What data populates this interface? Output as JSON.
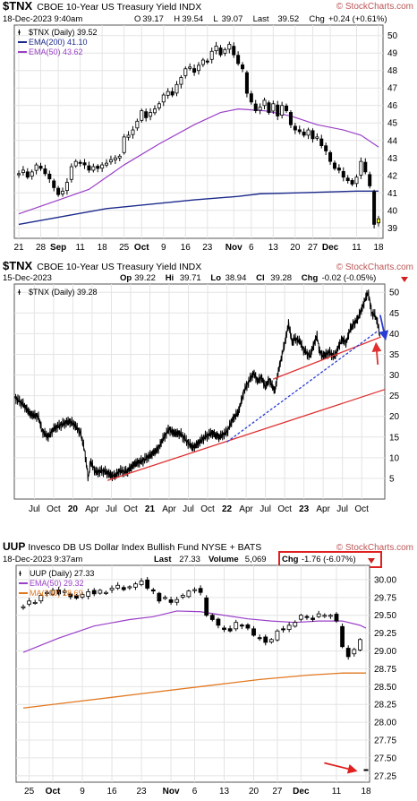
{
  "watermark": "© StockCharts.com",
  "chart_data": [
    {
      "type": "candlestick",
      "symbol": "$TNX",
      "title": "CBOE 10-Year US Treasury Yield",
      "exchange": "INDX",
      "date_line": "18-Dec-2023 9:40am",
      "header_values": [
        {
          "label": "O",
          "value": "39.17"
        },
        {
          "label": "H",
          "value": "39.54"
        },
        {
          "label": "L",
          "value": "39.07"
        },
        {
          "label": "Last",
          "value": "39.52"
        },
        {
          "label": "Chg",
          "value": "+0.24 (+0.61%)"
        }
      ],
      "legend": [
        {
          "name": "$TNX (Daily) 39.52",
          "color": "#000000"
        },
        {
          "name": "EMA(200) 41.10",
          "color": "#1c2a8c"
        },
        {
          "name": "EMA(50) 43.62",
          "color": "#9a3fc8"
        }
      ],
      "ylim": [
        38.4,
        50.6
      ],
      "y_ticks": [
        39,
        40,
        41,
        42,
        43,
        44,
        45,
        46,
        47,
        48,
        49,
        50
      ],
      "x_ticks": [
        {
          "label": "21",
          "index": 0,
          "bold": false
        },
        {
          "label": "28",
          "index": 5,
          "bold": false
        },
        {
          "label": "Sep",
          "index": 9,
          "bold": true
        },
        {
          "label": "11",
          "index": 14,
          "bold": false
        },
        {
          "label": "18",
          "index": 19,
          "bold": false
        },
        {
          "label": "25",
          "index": 24,
          "bold": false
        },
        {
          "label": "Oct",
          "index": 28,
          "bold": true
        },
        {
          "label": "9",
          "index": 33,
          "bold": false
        },
        {
          "label": "16",
          "index": 38,
          "bold": false
        },
        {
          "label": "23",
          "index": 43,
          "bold": false
        },
        {
          "label": "Nov",
          "index": 49,
          "bold": true
        },
        {
          "label": "6",
          "index": 53,
          "bold": false
        },
        {
          "label": "13",
          "index": 58,
          "bold": false
        },
        {
          "label": "20",
          "index": 63,
          "bold": false
        },
        {
          "label": "27",
          "index": 67,
          "bold": false
        },
        {
          "label": "Dec",
          "index": 71,
          "bold": true
        },
        {
          "label": "11",
          "index": 77,
          "bold": false
        },
        {
          "label": "18",
          "index": 82,
          "bold": false
        }
      ],
      "closes": [
        42.1,
        42.3,
        41.9,
        42.2,
        42.6,
        42.4,
        42.1,
        41.8,
        41.3,
        40.9,
        41.1,
        41.6,
        42.5,
        42.8,
        42.7,
        42.6,
        42.3,
        42.5,
        42.4,
        42.6,
        42.7,
        42.9,
        43.0,
        43.1,
        44.2,
        44.3,
        44.6,
        45.1,
        45.7,
        45.3,
        45.6,
        45.8,
        46.1,
        46.6,
        46.8,
        46.6,
        47.2,
        47.6,
        48.1,
        48.2,
        47.9,
        48.3,
        48.6,
        48.5,
        49.1,
        49.4,
        48.9,
        49.2,
        49.5,
        48.9,
        48.4,
        48.1,
        46.7,
        46.2,
        45.7,
        45.9,
        46.3,
        45.6,
        46.1,
        45.4,
        46.0,
        45.7,
        44.9,
        44.6,
        44.5,
        44.3,
        44.6,
        44.1,
        44.2,
        43.7,
        43.4,
        42.8,
        42.4,
        42.3,
        41.9,
        41.7,
        41.5,
        41.9,
        42.8,
        42.2,
        41.4,
        39.2,
        39.52
      ],
      "ema200": [
        [
          0,
          39.2
        ],
        [
          20,
          40.1
        ],
        [
          40,
          40.6
        ],
        [
          50,
          40.8
        ],
        [
          55,
          40.95
        ],
        [
          63,
          41.0
        ],
        [
          70,
          41.05
        ],
        [
          77,
          41.1
        ],
        [
          82,
          41.1
        ]
      ],
      "ema50": [
        [
          0,
          39.8
        ],
        [
          8,
          40.5
        ],
        [
          16,
          41.2
        ],
        [
          24,
          42.6
        ],
        [
          32,
          43.8
        ],
        [
          40,
          44.9
        ],
        [
          46,
          45.6
        ],
        [
          50,
          45.8
        ],
        [
          56,
          45.7
        ],
        [
          62,
          45.4
        ],
        [
          68,
          44.9
        ],
        [
          74,
          44.6
        ],
        [
          78,
          44.3
        ],
        [
          82,
          43.62
        ]
      ]
    },
    {
      "type": "line",
      "symbol": "$TNX",
      "title": "CBOE 10-Year US Treasury Yield",
      "exchange": "INDX",
      "date_line": "15-Dec-2023",
      "header_values": [
        {
          "label": "Op",
          "value": "39.22"
        },
        {
          "label": "Hi",
          "value": "39.71"
        },
        {
          "label": "Lo",
          "value": "38.94"
        },
        {
          "label": "Cl",
          "value": "39.28"
        },
        {
          "label": "Chg",
          "value": "-0.02 (-0.05%)"
        }
      ],
      "legend": [
        {
          "name": "$TNX (Daily) 39.28",
          "color": "#000000"
        }
      ],
      "ylim": [
        0,
        52
      ],
      "y_ticks": [
        5,
        10,
        15,
        20,
        25,
        30,
        35,
        40,
        45,
        50
      ],
      "x_ticks": [
        {
          "label": "Jul",
          "t": 2019.5,
          "bold": false
        },
        {
          "label": "Oct",
          "t": 2019.75,
          "bold": false
        },
        {
          "label": "20",
          "t": 2020.0,
          "bold": true
        },
        {
          "label": "Apr",
          "t": 2020.25,
          "bold": false
        },
        {
          "label": "Jul",
          "t": 2020.5,
          "bold": false
        },
        {
          "label": "Oct",
          "t": 2020.75,
          "bold": false
        },
        {
          "label": "21",
          "t": 2021.0,
          "bold": true
        },
        {
          "label": "Apr",
          "t": 2021.25,
          "bold": false
        },
        {
          "label": "Jul",
          "t": 2021.5,
          "bold": false
        },
        {
          "label": "Oct",
          "t": 2021.75,
          "bold": false
        },
        {
          "label": "22",
          "t": 2022.0,
          "bold": true
        },
        {
          "label": "Apr",
          "t": 2022.25,
          "bold": false
        },
        {
          "label": "Jul",
          "t": 2022.5,
          "bold": false
        },
        {
          "label": "Oct",
          "t": 2022.75,
          "bold": false
        },
        {
          "label": "23",
          "t": 2023.0,
          "bold": true
        },
        {
          "label": "Apr",
          "t": 2023.25,
          "bold": false
        },
        {
          "label": "Jul",
          "t": 2023.5,
          "bold": false
        },
        {
          "label": "Oct",
          "t": 2023.75,
          "bold": false
        }
      ],
      "t_range": [
        2019.24,
        2024.05
      ],
      "series": [
        [
          2019.25,
          24.5
        ],
        [
          2019.35,
          23.0
        ],
        [
          2019.45,
          20.5
        ],
        [
          2019.55,
          20.0
        ],
        [
          2019.6,
          16.5
        ],
        [
          2019.68,
          15.0
        ],
        [
          2019.75,
          17.0
        ],
        [
          2019.85,
          18.0
        ],
        [
          2019.95,
          18.8
        ],
        [
          2020.02,
          18.0
        ],
        [
          2020.1,
          16.0
        ],
        [
          2020.15,
          12.0
        ],
        [
          2020.18,
          8.0
        ],
        [
          2020.2,
          5.0
        ],
        [
          2020.23,
          9.0
        ],
        [
          2020.3,
          6.5
        ],
        [
          2020.4,
          6.8
        ],
        [
          2020.5,
          5.8
        ],
        [
          2020.55,
          5.5
        ],
        [
          2020.6,
          6.8
        ],
        [
          2020.7,
          6.6
        ],
        [
          2020.8,
          8.5
        ],
        [
          2020.9,
          9.2
        ],
        [
          2021.0,
          10.5
        ],
        [
          2021.1,
          12.0
        ],
        [
          2021.17,
          14.5
        ],
        [
          2021.25,
          17.0
        ],
        [
          2021.3,
          16.0
        ],
        [
          2021.4,
          15.8
        ],
        [
          2021.5,
          13.5
        ],
        [
          2021.55,
          12.5
        ],
        [
          2021.6,
          13.0
        ],
        [
          2021.7,
          14.8
        ],
        [
          2021.8,
          16.0
        ],
        [
          2021.9,
          15.0
        ],
        [
          2022.0,
          16.2
        ],
        [
          2022.08,
          19.5
        ],
        [
          2022.15,
          21.0
        ],
        [
          2022.22,
          26.0
        ],
        [
          2022.3,
          29.0
        ],
        [
          2022.35,
          30.5
        ],
        [
          2022.4,
          28.5
        ],
        [
          2022.45,
          29.5
        ],
        [
          2022.5,
          27.0
        ],
        [
          2022.55,
          29.0
        ],
        [
          2022.62,
          26.0
        ],
        [
          2022.68,
          32.0
        ],
        [
          2022.75,
          37.5
        ],
        [
          2022.8,
          42.5
        ],
        [
          2022.85,
          37.5
        ],
        [
          2022.88,
          39.0
        ],
        [
          2022.95,
          38.0
        ],
        [
          2023.0,
          36.0
        ],
        [
          2023.08,
          34.5
        ],
        [
          2023.13,
          37.5
        ],
        [
          2023.17,
          39.5
        ],
        [
          2023.2,
          36.0
        ],
        [
          2023.25,
          34.5
        ],
        [
          2023.32,
          35.5
        ],
        [
          2023.4,
          34.5
        ],
        [
          2023.45,
          37.0
        ],
        [
          2023.5,
          38.5
        ],
        [
          2023.55,
          38.0
        ],
        [
          2023.6,
          41.0
        ],
        [
          2023.65,
          42.5
        ],
        [
          2023.7,
          43.5
        ],
        [
          2023.75,
          46.0
        ],
        [
          2023.8,
          48.5
        ],
        [
          2023.83,
          49.8
        ],
        [
          2023.85,
          48.5
        ],
        [
          2023.88,
          45.0
        ],
        [
          2023.92,
          44.5
        ],
        [
          2023.95,
          43.0
        ],
        [
          2023.97,
          41.5
        ],
        [
          2023.985,
          39.28
        ]
      ],
      "trendlines": [
        {
          "color": "#e03030",
          "style": "solid",
          "from": [
            2020.45,
            4.5
          ],
          "to": [
            2024.05,
            26.5
          ]
        },
        {
          "color": "#e03030",
          "style": "solid",
          "from": [
            2022.6,
            29.0
          ],
          "to": [
            2024.0,
            39.2
          ]
        },
        {
          "color": "#2a3cd8",
          "style": "dashed",
          "from": [
            2022.0,
            13.8
          ],
          "to": [
            2023.97,
            40.8
          ]
        }
      ],
      "arrows": [
        {
          "color": "#2a3cd8",
          "from": [
            2023.99,
            44.5
          ],
          "to": [
            2024.05,
            39.5
          ]
        },
        {
          "color": "#e03030",
          "from": [
            2023.96,
            32.5
          ],
          "to": [
            2023.94,
            36.8
          ]
        }
      ]
    },
    {
      "type": "candlestick",
      "symbol": "UUP",
      "title": "Invesco DB US Dollar Index Bullish Fund",
      "exchange": "NYSE + BATS",
      "date_line": "18-Dec-2023 9:37am",
      "header_values": [
        {
          "label": "Last",
          "value": "27.33"
        },
        {
          "label": "Volume",
          "value": "5,069"
        },
        {
          "label": "Chg",
          "value": "-1.76 (-6.07%)"
        }
      ],
      "legend": [
        {
          "name": "UUP (Daily) 27.33",
          "color": "#000000"
        },
        {
          "name": "EMA(50) 29.32",
          "color": "#9a3fc8"
        },
        {
          "name": "MA(200) 28.69",
          "color": "#e07820"
        }
      ],
      "ylim": [
        27.16,
        30.2
      ],
      "y_ticks": [
        "27.25",
        "27.50",
        "27.75",
        "28.00",
        "28.25",
        "28.50",
        "28.75",
        "29.00",
        "29.25",
        "29.50",
        "29.75",
        "30.00"
      ],
      "x_ticks": [
        {
          "label": "25",
          "index": 1,
          "bold": false
        },
        {
          "label": "Oct",
          "index": 5,
          "bold": true
        },
        {
          "label": "9",
          "index": 10,
          "bold": false
        },
        {
          "label": "16",
          "index": 15,
          "bold": false
        },
        {
          "label": "23",
          "index": 20,
          "bold": false
        },
        {
          "label": "Nov",
          "index": 25,
          "bold": true
        },
        {
          "label": "6",
          "index": 29,
          "bold": false
        },
        {
          "label": "13",
          "index": 34,
          "bold": false
        },
        {
          "label": "20",
          "index": 39,
          "bold": false
        },
        {
          "label": "27",
          "index": 43,
          "bold": false
        },
        {
          "label": "Dec",
          "index": 47,
          "bold": true
        },
        {
          "label": "11",
          "index": 53,
          "bold": false
        },
        {
          "label": "18",
          "index": 58,
          "bold": false
        }
      ],
      "closes": [
        29.62,
        29.7,
        29.68,
        29.78,
        29.82,
        29.85,
        29.8,
        29.84,
        29.76,
        29.74,
        29.79,
        29.83,
        29.8,
        29.85,
        29.82,
        29.88,
        29.92,
        29.86,
        29.9,
        29.94,
        29.98,
        29.88,
        29.84,
        29.7,
        29.75,
        29.68,
        29.72,
        29.78,
        29.84,
        29.86,
        29.82,
        29.5,
        29.44,
        29.36,
        29.3,
        29.28,
        29.4,
        29.35,
        29.32,
        29.22,
        29.18,
        29.12,
        29.16,
        29.28,
        29.3,
        29.36,
        29.4,
        29.5,
        29.48,
        29.44,
        29.52,
        29.5,
        29.5,
        29.42,
        29.06,
        28.92,
        29.02,
        29.16,
        27.33
      ],
      "ema50": [
        [
          0,
          28.98
        ],
        [
          6,
          29.18
        ],
        [
          12,
          29.35
        ],
        [
          18,
          29.44
        ],
        [
          22,
          29.48
        ],
        [
          26,
          29.56
        ],
        [
          30,
          29.55
        ],
        [
          34,
          29.5
        ],
        [
          38,
          29.45
        ],
        [
          42,
          29.42
        ],
        [
          46,
          29.4
        ],
        [
          50,
          29.42
        ],
        [
          54,
          29.42
        ],
        [
          57,
          29.36
        ],
        [
          58,
          29.32
        ]
      ],
      "ma200": [
        [
          0,
          28.2
        ],
        [
          10,
          28.3
        ],
        [
          20,
          28.4
        ],
        [
          30,
          28.5
        ],
        [
          40,
          28.6
        ],
        [
          48,
          28.66
        ],
        [
          54,
          28.69
        ],
        [
          58,
          28.69
        ]
      ],
      "annotations": [
        {
          "type": "arrow",
          "color": "#e02020",
          "to_index": 57,
          "to_value": 27.33
        }
      ]
    }
  ]
}
